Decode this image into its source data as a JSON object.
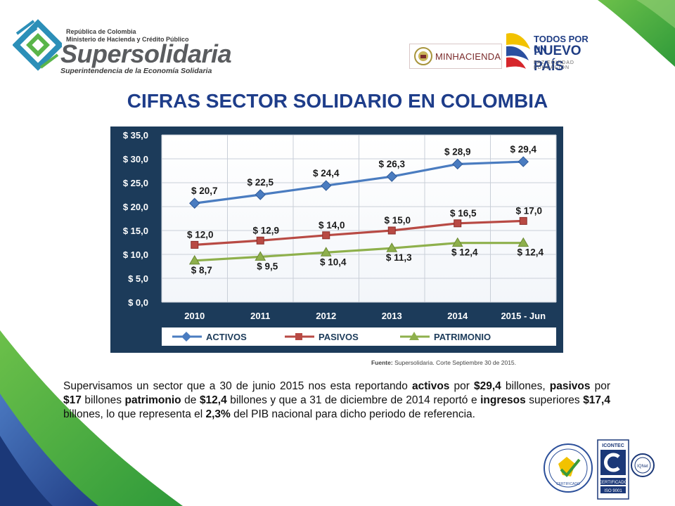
{
  "header": {
    "org_line1": "República de Colombia",
    "org_line2": "Ministerio de Hacienda y Crédito Público",
    "org_name": "Supersolidaria",
    "org_subtitle": "Superintendencia de la Economía Solidaria",
    "partner_logo_text": "MINHACIENDA",
    "campaign_line1": "TODOS POR UN",
    "campaign_line2": "NUEVO PAÍS",
    "campaign_line3": "PAZ EQUIDAD EDUCACIÓN"
  },
  "title": "CIFRAS SECTOR SOLIDARIO EN COLOMBIA",
  "chart_data": {
    "type": "line",
    "categories": [
      "2010",
      "2011",
      "2012",
      "2013",
      "2014",
      "2015 - Jun"
    ],
    "ylim": [
      0,
      35
    ],
    "yticks": [
      0,
      5,
      10,
      15,
      20,
      25,
      30,
      35
    ],
    "ytick_labels": [
      "$ 0,0",
      "$ 5,0",
      "$ 10,0",
      "$ 15,0",
      "$ 20,0",
      "$ 25,0",
      "$ 30,0",
      "$ 35,0"
    ],
    "grid": true,
    "legend_position": "bottom",
    "series": [
      {
        "name": "ACTIVOS",
        "values": [
          20.7,
          22.5,
          24.4,
          26.3,
          28.9,
          29.4
        ],
        "labels": [
          "$ 20,7",
          "$ 22,5",
          "$ 24,4",
          "$ 26,3",
          "$ 28,9",
          "$ 29,4"
        ],
        "color": "#4a7cc0",
        "marker": "diamond"
      },
      {
        "name": "PASIVOS",
        "values": [
          12.0,
          12.9,
          14.0,
          15.0,
          16.5,
          17.0
        ],
        "labels": [
          "$ 12,0",
          "$ 12,9",
          "$ 14,0",
          "$ 15,0",
          "$ 16,5",
          "$ 17,0"
        ],
        "color": "#b84a44",
        "marker": "square"
      },
      {
        "name": "PATRIMONIO",
        "values": [
          8.7,
          9.5,
          10.4,
          11.3,
          12.4,
          12.4
        ],
        "labels": [
          "$ 8,7",
          "$ 9,5",
          "$ 10,4",
          "$ 11,3",
          "$ 12,4",
          "$ 12,4"
        ],
        "color": "#8eb04c",
        "marker": "triangle"
      }
    ]
  },
  "source": {
    "label": "Fuente:",
    "text": "Supersolidaria. Corte Septiembre 30 de 2015."
  },
  "paragraph": {
    "p1": "Supervisamos un sector que a 30 de junio 2015 nos esta reportando ",
    "b1": "activos",
    "p2": " por ",
    "b2": "$29,4",
    "p3": " billones, ",
    "b3": "pasivos",
    "p4": " por ",
    "b4": "$17",
    "p5": " billones ",
    "b5": "patrimonio",
    "p6": " de ",
    "b6": "$12,4",
    "p7": " billones y que a 31 de diciembre de 2014 reportó e ",
    "b7": "ingresos",
    "p8": " superiores ",
    "b8": "$17,4",
    "p9": "  billones, lo que representa el ",
    "b9": "2,3%",
    "p10": " del PIB nacional para dicho periodo de referencia."
  },
  "seals": {
    "seal1_text": "CERTIFICADO",
    "seal2_top": "ICONTEC",
    "seal2_mid": "CERTIFICADO",
    "seal2_bottom": "ISO 9001",
    "seal3_text": "IQNet"
  },
  "colors": {
    "title": "#1e3d8a",
    "chart_frame": "#1c3b5a",
    "green_decor": "#4caf3a",
    "blue_decor": "#2b4f9a"
  }
}
